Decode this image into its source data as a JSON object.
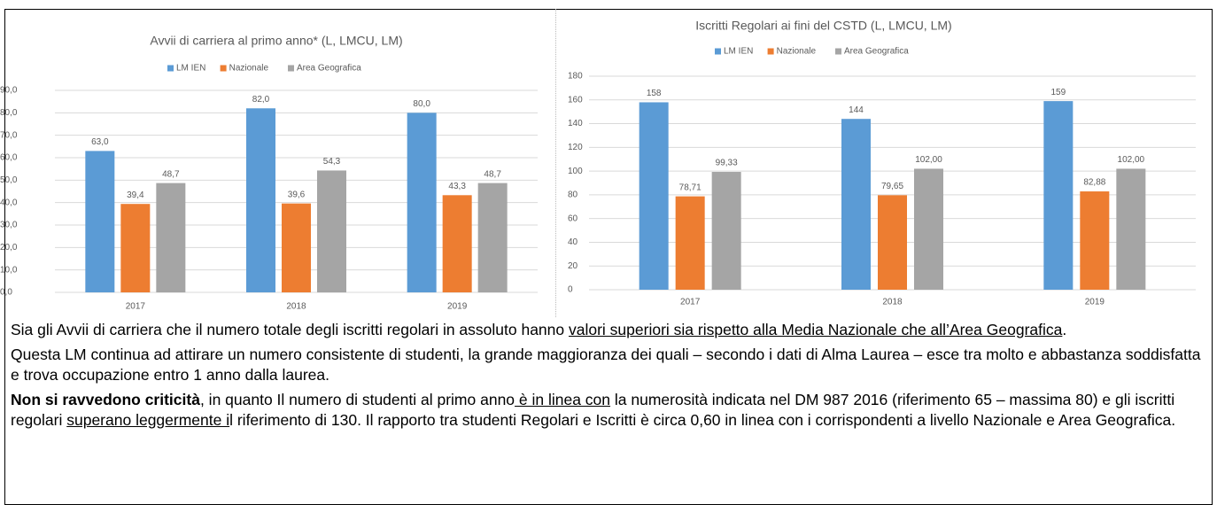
{
  "chart_data": [
    {
      "type": "bar",
      "title": "Avvii di carriera al primo anno* (L, LMCU, LM)",
      "categories": [
        "2017",
        "2018",
        "2019"
      ],
      "series": [
        {
          "name": "LM IEN",
          "color": "#5b9bd5",
          "values": [
            63,
            82,
            80
          ],
          "value_labels": [
            "63,0",
            "82,0",
            "80,0"
          ]
        },
        {
          "name": "Nazionale",
          "color": "#ed7d31",
          "values": [
            39.4,
            39.6,
            43.3
          ],
          "value_labels": [
            "39,4",
            "39,6",
            "43,3"
          ]
        },
        {
          "name": "Area Geografica",
          "color": "#a5a5a5",
          "values": [
            48.7,
            54.3,
            48.7
          ],
          "value_labels": [
            "48,7",
            "54,3",
            "48,7"
          ]
        }
      ],
      "ylim": [
        0,
        90
      ],
      "yticks": [
        {
          "value": 0,
          "label": "0,0"
        },
        {
          "value": 10,
          "label": "10,0"
        },
        {
          "value": 20,
          "label": "20,0"
        },
        {
          "value": 30,
          "label": "30,0"
        },
        {
          "value": 40,
          "label": "40,0"
        },
        {
          "value": 50,
          "label": "50,0"
        },
        {
          "value": 60,
          "label": "60,0"
        },
        {
          "value": 70,
          "label": "70,0"
        },
        {
          "value": 80,
          "label": "80,0"
        },
        {
          "value": 90,
          "label": "90,0"
        }
      ],
      "grid": true,
      "legend": "top"
    },
    {
      "type": "bar",
      "title": "Iscritti Regolari ai fini del CSTD (L, LMCU, LM)",
      "categories": [
        "2017",
        "2018",
        "2019"
      ],
      "series": [
        {
          "name": "LM IEN",
          "color": "#5b9bd5",
          "values": [
            158,
            144,
            159
          ]
        },
        {
          "name": "Nazionale",
          "color": "#ed7d31",
          "values": [
            78.71,
            79.65,
            82.88
          ],
          "value_labels": [
            "78,71",
            "79,65",
            "82,88"
          ]
        },
        {
          "name": "Area Geografica",
          "color": "#a5a5a5",
          "values": [
            99.33,
            102,
            102
          ],
          "value_labels": [
            "99,33",
            "102,00",
            "102,00"
          ]
        }
      ],
      "ylim": [
        0,
        180
      ],
      "yticks": [
        0,
        20,
        40,
        60,
        80,
        100,
        120,
        140,
        160,
        180
      ],
      "grid": true,
      "legend": "top"
    }
  ],
  "paragraphs": [
    {
      "runs": [
        {
          "text": "Sia gli Avvii di carriera che il numero totale degli iscritti regolari in assoluto hanno "
        },
        {
          "text": "valori superiori sia rispetto alla Media Nazionale che all’Area Geografica",
          "underline": true
        },
        {
          "text": "."
        }
      ]
    },
    {
      "runs": [
        {
          "text": "Questa LM continua ad attirare un numero consistente di studenti, la grande maggioranza dei quali – secondo i dati di Alma Laurea – esce tra molto e abbastanza soddisfatta e trova occupazione entro 1 anno dalla laurea."
        }
      ]
    },
    {
      "runs": [
        {
          "text": "Non si ravvedono criticità",
          "bold": true
        },
        {
          "text": ", in quanto Il numero di studenti al primo anno"
        },
        {
          "text": " è in linea con",
          "underline": true
        },
        {
          "text": " la numerosità indicata nel DM 987 2016 (riferimento 65 – massima 80) e gli iscritti regolari "
        },
        {
          "text": "superano leggermente i",
          "underline": true
        },
        {
          "text": "l riferimento di 130. Il rapporto tra studenti Regolari e Iscritti è circa 0,60 in linea con i corrispondenti a livello Nazionale e Area Geografica."
        }
      ]
    }
  ]
}
